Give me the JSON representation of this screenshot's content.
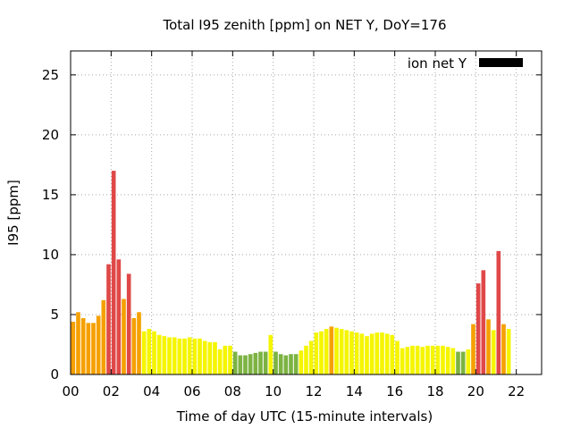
{
  "chart_data": {
    "type": "bar",
    "title": "Total I95 zenith [ppm] on NET Y, DoY=176",
    "xlabel": "Time of day UTC (15-minute intervals)",
    "ylabel": "I95 [ppm]",
    "xlim": [
      0,
      23.25
    ],
    "ylim": [
      0,
      27
    ],
    "xticks": [
      "00",
      "02",
      "04",
      "06",
      "08",
      "10",
      "12",
      "14",
      "16",
      "18",
      "20",
      "22"
    ],
    "xtick_hours": [
      0,
      2,
      4,
      6,
      8,
      10,
      12,
      14,
      16,
      18,
      20,
      22
    ],
    "yticks": [
      0,
      5,
      10,
      15,
      20,
      25
    ],
    "grid": true,
    "legend": {
      "label": "ion net Y",
      "color": "#000000",
      "placement": "top-right"
    },
    "bar_interval_hours": 0.25,
    "first_bar_hour": 0.125,
    "values": [
      4.4,
      5.2,
      4.7,
      4.3,
      4.3,
      4.9,
      6.2,
      9.2,
      17.0,
      9.6,
      6.3,
      8.4,
      4.7,
      5.2,
      3.6,
      3.8,
      3.6,
      3.3,
      3.2,
      3.1,
      3.1,
      3.0,
      3.0,
      3.1,
      3.0,
      3.0,
      2.8,
      2.7,
      2.7,
      2.1,
      2.4,
      2.4,
      1.9,
      1.6,
      1.6,
      1.7,
      1.8,
      1.9,
      1.9,
      3.3,
      1.9,
      1.7,
      1.6,
      1.7,
      1.7,
      2.0,
      2.4,
      2.8,
      3.5,
      3.6,
      3.8,
      4.0,
      3.9,
      3.8,
      3.7,
      3.6,
      3.5,
      3.4,
      3.2,
      3.4,
      3.5,
      3.5,
      3.4,
      3.3,
      2.8,
      2.2,
      2.3,
      2.4,
      2.4,
      2.3,
      2.4,
      2.4,
      2.4,
      2.4,
      2.3,
      2.2,
      1.9,
      1.9,
      2.1,
      4.2,
      7.6,
      8.7,
      4.6,
      3.7,
      10.3,
      4.2,
      3.8
    ],
    "color_scale": [
      {
        "max": 2.0,
        "color": "#7cb342"
      },
      {
        "max": 4.0,
        "color": "#f5f500"
      },
      {
        "max": 7.5,
        "color": "#f5a000"
      },
      {
        "max": 100,
        "color": "#e04848"
      }
    ]
  }
}
